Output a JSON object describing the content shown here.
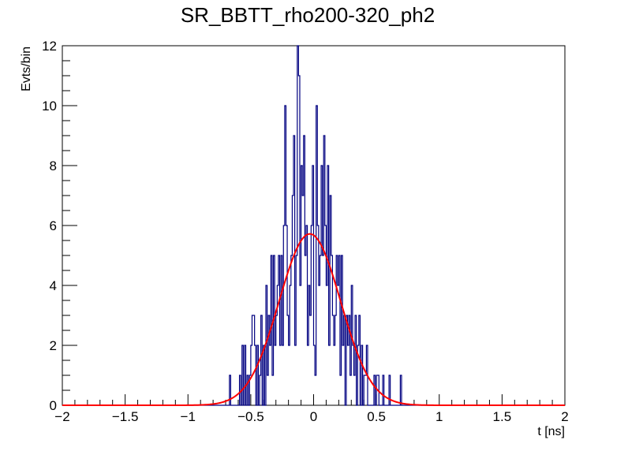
{
  "chart_data": {
    "type": "histogram",
    "title": "SR_BBTT_rho200-320_ph2",
    "xlabel": "t [ns]",
    "ylabel": "Evts/bin",
    "xlim": [
      -2,
      2
    ],
    "ylim": [
      0,
      12
    ],
    "x_ticks": [
      -2,
      -1.5,
      -1,
      -0.5,
      0,
      0.5,
      1,
      1.5,
      2
    ],
    "x_tick_labels": [
      "−2",
      "−1.5",
      "−1",
      "−0.5",
      "0",
      "0.5",
      "1",
      "1.5",
      "2"
    ],
    "y_ticks": [
      0,
      2,
      4,
      6,
      8,
      10,
      12
    ],
    "y_tick_labels": [
      "0",
      "2",
      "4",
      "6",
      "8",
      "10",
      "12"
    ],
    "grid": false,
    "bin_width": 0.01,
    "series": [
      {
        "style": "step",
        "color": "#000080",
        "bins_x_start": -0.75,
        "values": [
          0,
          0,
          0,
          0,
          0,
          0,
          0,
          0,
          1,
          0,
          0,
          0,
          0,
          0,
          0,
          0,
          1,
          0,
          2,
          0,
          2,
          0,
          1,
          0,
          1,
          2,
          3,
          3,
          2,
          0,
          2,
          0,
          1,
          3,
          0,
          2,
          0,
          4,
          1,
          3,
          2,
          5,
          1,
          5,
          2,
          3,
          4,
          5,
          2,
          5,
          2,
          6,
          10,
          6,
          3,
          2,
          4,
          5,
          7,
          9,
          2,
          5,
          12,
          11,
          4,
          8,
          7,
          9,
          5,
          6,
          2,
          4,
          3,
          6,
          8,
          2,
          1,
          10,
          6,
          4,
          5,
          8,
          5,
          9,
          6,
          4,
          8,
          2,
          7,
          5,
          3,
          2,
          3,
          5,
          4,
          5,
          1,
          5,
          2,
          3,
          0,
          3,
          2,
          3,
          1,
          4,
          2,
          1,
          3,
          0,
          2,
          3,
          0,
          2,
          0,
          1,
          1,
          2,
          0,
          0,
          0,
          0,
          0,
          1,
          0,
          1,
          1,
          0,
          0,
          0,
          1,
          0,
          0,
          0,
          0,
          1,
          0,
          0,
          0,
          0,
          0,
          0,
          0,
          0,
          1,
          0,
          0
        ]
      },
      {
        "name": "",
        "style": "line",
        "color": "#ff0000",
        "function": "gaussian",
        "amplitude": 5.72,
        "mean": -0.03,
        "sigma": 0.245
      }
    ]
  }
}
